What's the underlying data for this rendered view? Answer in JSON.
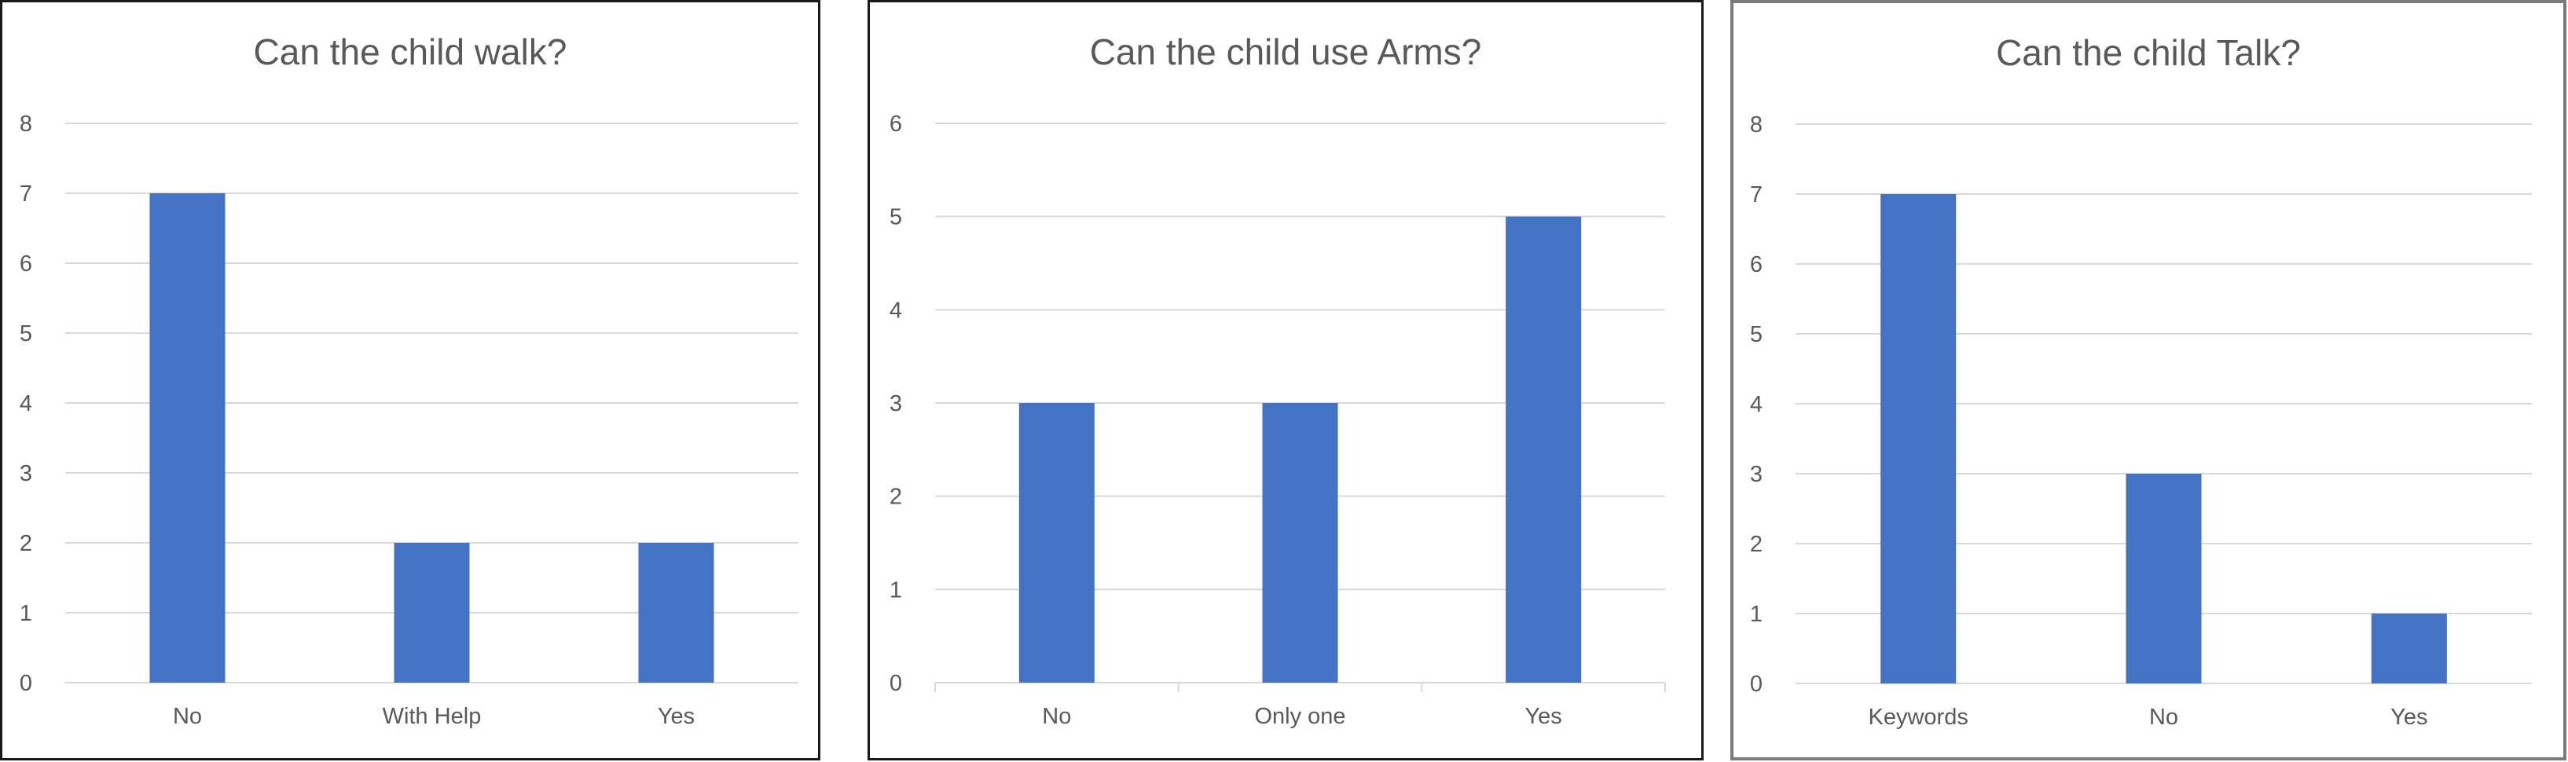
{
  "chart_data": [
    {
      "type": "bar",
      "title": "Can the child walk?",
      "categories": [
        "No",
        "With Help",
        "Yes"
      ],
      "values": [
        7,
        2,
        2
      ],
      "ylim": [
        0,
        8
      ],
      "yticks": [
        0,
        1,
        2,
        3,
        4,
        5,
        6,
        7,
        8
      ],
      "grid": true,
      "color": "#4472C4"
    },
    {
      "type": "bar",
      "title": "Can the child use Arms?",
      "categories": [
        "No",
        "Only one",
        "Yes"
      ],
      "values": [
        3,
        3,
        5
      ],
      "ylim": [
        0,
        6
      ],
      "yticks": [
        0,
        1,
        2,
        3,
        4,
        5,
        6
      ],
      "grid": true,
      "color": "#4472C4"
    },
    {
      "type": "bar",
      "title": "Can the child Talk?",
      "categories": [
        "Keywords",
        "No",
        "Yes"
      ],
      "values": [
        7,
        3,
        1
      ],
      "ylim": [
        0,
        8
      ],
      "yticks": [
        0,
        1,
        2,
        3,
        4,
        5,
        6,
        7,
        8
      ],
      "grid": true,
      "color": "#4472C4"
    }
  ]
}
